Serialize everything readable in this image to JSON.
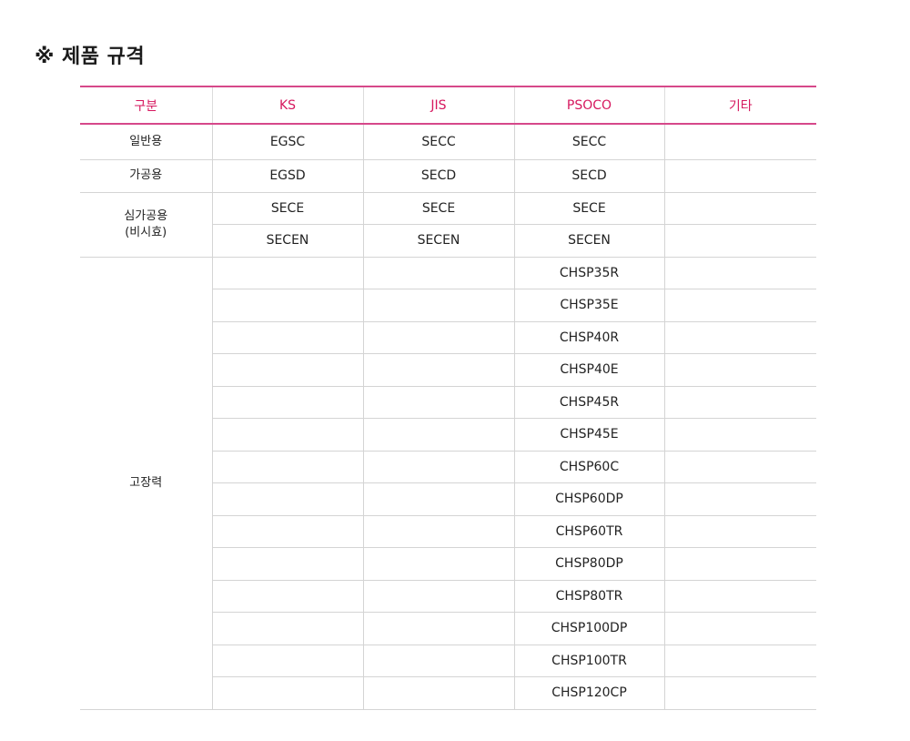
{
  "title": "※ 제품 규격",
  "table": {
    "headers": [
      "구분",
      "KS",
      "JIS",
      "PSOCO",
      "기타"
    ],
    "rows": [
      {
        "category": "일반용",
        "cells": [
          "EGSC",
          "SECC",
          "SECC",
          ""
        ]
      },
      {
        "category": "가공용",
        "cells": [
          "EGSD",
          "SECD",
          "SECD",
          ""
        ]
      },
      {
        "category_lines": [
          "심가공용",
          "(비시효)"
        ],
        "cells": [
          "SECE",
          "SECE",
          "SECE",
          ""
        ]
      },
      {
        "cells": [
          "SECEN",
          "SECEN",
          "SECEN",
          ""
        ]
      },
      {
        "category": "고장력",
        "cells": [
          "",
          "",
          "CHSP35R",
          ""
        ]
      },
      {
        "cells": [
          "",
          "",
          "CHSP35E",
          ""
        ]
      },
      {
        "cells": [
          "",
          "",
          "CHSP40R",
          ""
        ]
      },
      {
        "cells": [
          "",
          "",
          "CHSP40E",
          ""
        ]
      },
      {
        "cells": [
          "",
          "",
          "CHSP45R",
          ""
        ]
      },
      {
        "cells": [
          "",
          "",
          "CHSP45E",
          ""
        ]
      },
      {
        "cells": [
          "",
          "",
          "CHSP60C",
          ""
        ]
      },
      {
        "cells": [
          "",
          "",
          "CHSP60DP",
          ""
        ]
      },
      {
        "cells": [
          "",
          "",
          "CHSP60TR",
          ""
        ]
      },
      {
        "cells": [
          "",
          "",
          "CHSP80DP",
          ""
        ]
      },
      {
        "cells": [
          "",
          "",
          "CHSP80TR",
          ""
        ]
      },
      {
        "cells": [
          "",
          "",
          "CHSP100DP",
          ""
        ]
      },
      {
        "cells": [
          "",
          "",
          "CHSP100TR",
          ""
        ]
      },
      {
        "cells": [
          "",
          "",
          "CHSP120CP",
          ""
        ]
      }
    ]
  },
  "colors": {
    "accent": "#d6175e",
    "header_rule": "#d6488a",
    "grid": "#d4d4d4"
  }
}
